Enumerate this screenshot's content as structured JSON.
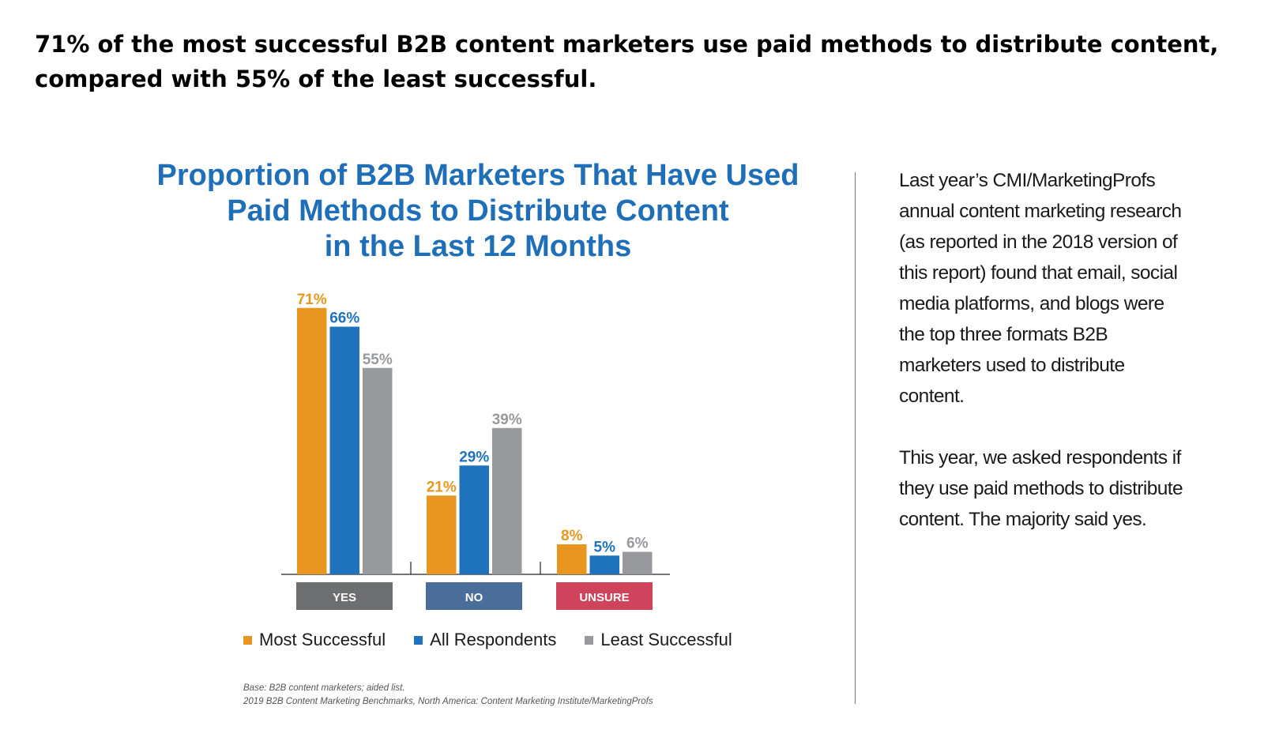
{
  "headline": {
    "line1": "71% of the most successful B2B content marketers use paid methods to distribute content,",
    "line2": "compared with 55% of the least successful."
  },
  "colors": {
    "most": "#e8961f",
    "all": "#1f73bd",
    "least": "#97999c",
    "yes_box": "#6d6e70",
    "no_box": "#4a6d99",
    "unsure_box": "#d0445b",
    "title": "#1f6fb8"
  },
  "chart_data": {
    "type": "bar",
    "title": "Proportion of B2B Marketers That Have Used Paid Methods to Distribute Content in the Last 12 Months",
    "title_lines": [
      "Proportion of B2B Marketers That Have Used",
      "Paid Methods to Distribute Content",
      "in the Last 12 Months"
    ],
    "categories": [
      "YES",
      "NO",
      "UNSURE"
    ],
    "series": [
      {
        "name": "Most Successful",
        "key": "most",
        "values": [
          71,
          21,
          8
        ]
      },
      {
        "name": "All Respondents",
        "key": "all",
        "values": [
          66,
          29,
          5
        ]
      },
      {
        "name": "Least Successful",
        "key": "least",
        "values": [
          55,
          39,
          6
        ]
      }
    ],
    "value_suffix": "%",
    "ylim": [
      0,
      100
    ],
    "xlabel": "",
    "ylabel": "",
    "grid": false,
    "legend": "bottom"
  },
  "source": {
    "line1": "Base: B2B content marketers; aided list.",
    "line2": "2019 B2B Content Marketing Benchmarks, North America: Content Marketing Institute/MarketingProfs"
  },
  "side_text": {
    "para1": "Last year’s CMI/MarketingProfs annual content marketing research (as reported in the 2018 version of this report) found that email, social media platforms, and blogs were the top three formats B2B marketers used to distribute content.",
    "para2": "This year, we asked respondents if they use paid methods to distribute content. The majority said yes."
  }
}
